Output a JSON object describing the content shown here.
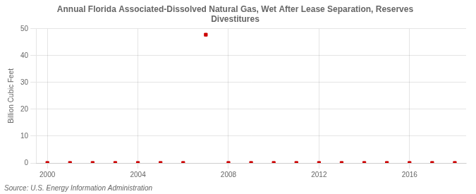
{
  "chart_data": {
    "type": "scatter",
    "title": "Annual Florida Associated-Dissolved Natural Gas, Wet After Lease Separation, Reserves\nDivestitures",
    "ylabel": "Billion Cubic Feet",
    "source": "Source: U.S. Energy Information Administration",
    "x": [
      2000,
      2001,
      2002,
      2003,
      2004,
      2005,
      2006,
      2007,
      2008,
      2009,
      2010,
      2011,
      2012,
      2013,
      2014,
      2015,
      2016,
      2017,
      2018
    ],
    "values": [
      0.0,
      0.0,
      0.0,
      0.0,
      0.0,
      0.0,
      0.0,
      47.8,
      0.0,
      0.0,
      0.0,
      0.0,
      0.0,
      0.0,
      0.0,
      0.0,
      0.0,
      0.0,
      0.0
    ],
    "color": "#cc0000",
    "marker": "square",
    "xlim": [
      1999.5,
      2018.5
    ],
    "xticks": [
      2000,
      2004,
      2008,
      2012,
      2016
    ],
    "ylim": [
      0,
      50
    ],
    "yticks": [
      0,
      10,
      20,
      30,
      40,
      50
    ],
    "grid": true
  }
}
